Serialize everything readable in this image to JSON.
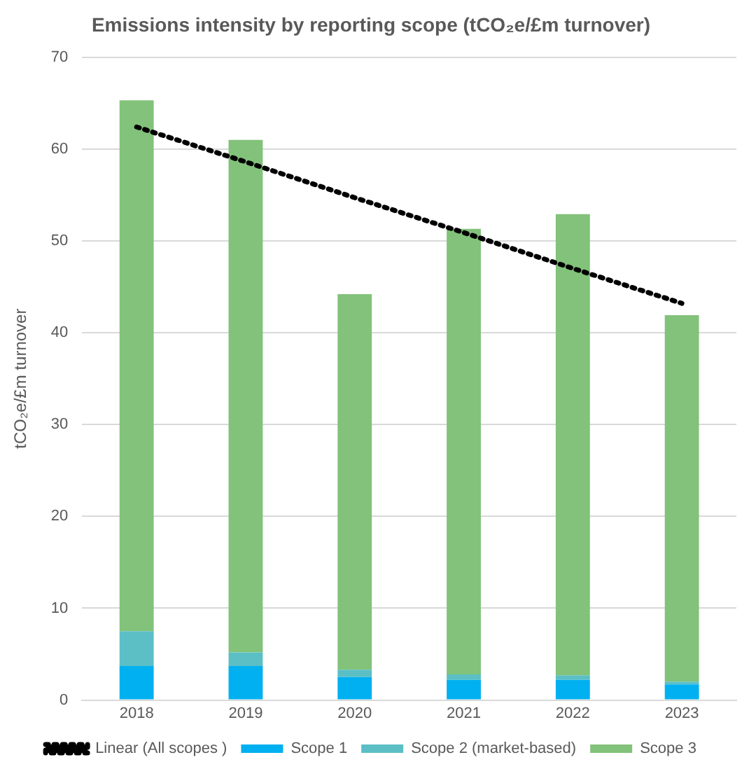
{
  "chart_data": {
    "type": "bar",
    "title": "Emissions intensity by reporting scope (tCO₂e/£m turnover)",
    "ylabel": "tCO₂e/£m turnover",
    "categories": [
      "2018",
      "2019",
      "2020",
      "2021",
      "2022",
      "2023"
    ],
    "stacked": true,
    "ylim": [
      0,
      70
    ],
    "yticks": [
      0,
      10,
      20,
      30,
      40,
      50,
      60,
      70
    ],
    "grid": "y",
    "legend": "bottom",
    "series": [
      {
        "name": "Scope 1",
        "color": "#00b0f0",
        "values": [
          3.7,
          3.7,
          2.5,
          2.2,
          2.2,
          1.7
        ]
      },
      {
        "name": "Scope 2 (market-based)",
        "color": "#5bbfc5",
        "values": [
          3.8,
          1.5,
          0.8,
          0.6,
          0.5,
          0.3
        ]
      },
      {
        "name": "Scope 3",
        "color": "#82c27a",
        "values": [
          57.8,
          55.8,
          40.9,
          48.5,
          50.2,
          39.9
        ]
      },
      {
        "name": "Linear (All scopes )",
        "type": "line",
        "color": "#000000",
        "line_style": "dotted",
        "marker": "none",
        "values": [
          62.4,
          58.6,
          54.7,
          50.9,
          47.0,
          43.2
        ]
      }
    ]
  }
}
